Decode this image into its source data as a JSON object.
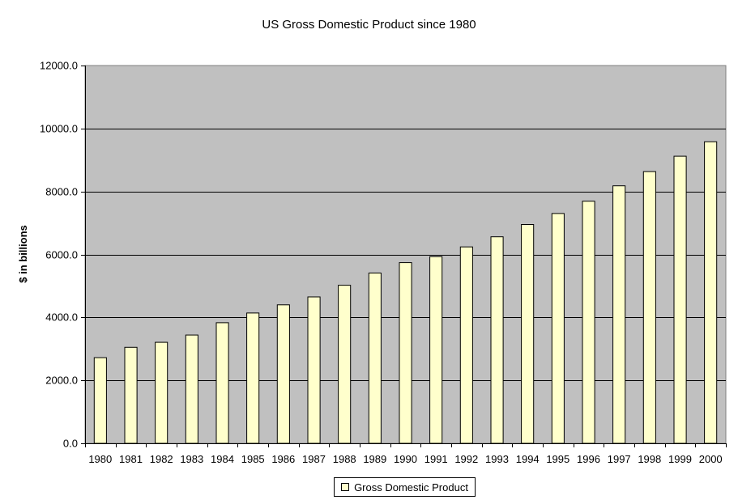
{
  "colors": {
    "plot_bg": "#c0c0c0",
    "bar_fill": "#ffffcc",
    "gridline": "#000000"
  },
  "chart_data": {
    "type": "bar",
    "title": "US Gross Domestic Product since 1980",
    "xlabel": "",
    "ylabel": "$ in billions",
    "ylim": [
      0,
      12000
    ],
    "yticks": [
      0,
      2000,
      4000,
      6000,
      8000,
      10000,
      12000
    ],
    "ytick_labels": [
      "0.0",
      "2000.0",
      "4000.0",
      "6000.0",
      "8000.0",
      "10000.0",
      "12000.0"
    ],
    "grid": true,
    "legend_position": "bottom",
    "categories": [
      "1980",
      "1981",
      "1982",
      "1983",
      "1984",
      "1985",
      "1986",
      "1987",
      "1988",
      "1989",
      "1990",
      "1991",
      "1992",
      "1993",
      "1994",
      "1995",
      "1996",
      "1997",
      "1998",
      "1999",
      "2000"
    ],
    "series": [
      {
        "name": "Gross Domestic Product",
        "values": [
          2720,
          3050,
          3210,
          3440,
          3830,
          4140,
          4400,
          4650,
          5020,
          5410,
          5740,
          5930,
          6240,
          6560,
          6950,
          7300,
          7690,
          8180,
          8630,
          9120,
          9580
        ]
      }
    ]
  }
}
